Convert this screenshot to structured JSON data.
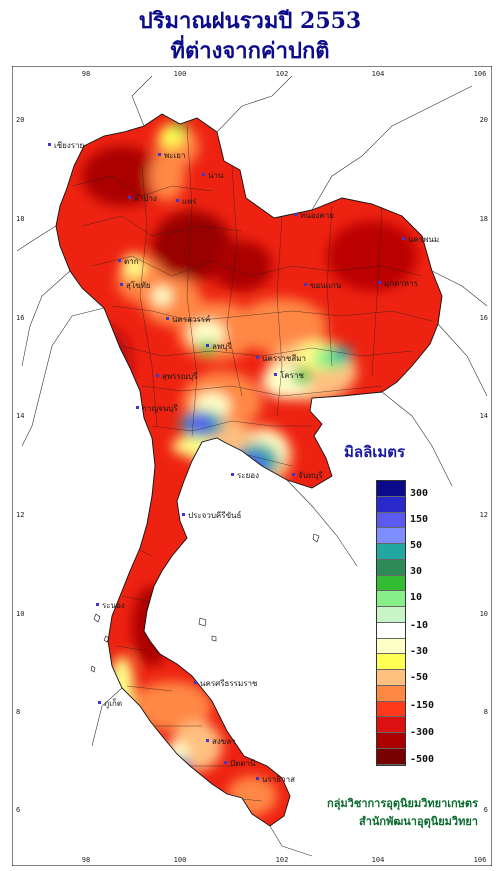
{
  "title": {
    "line1": "ปริมาณฝนรวมปี  2553",
    "line2": "ที่ต่างจากค่าปกติ"
  },
  "map": {
    "x_ticks": [
      "98",
      "100",
      "102",
      "104",
      "106"
    ],
    "y_ticks": [
      "20",
      "18",
      "16",
      "14",
      "12",
      "10",
      "8",
      "6"
    ],
    "places": [
      {
        "name": "เชียงราย"
      },
      {
        "name": "น่าน"
      },
      {
        "name": "พะเยา"
      },
      {
        "name": "ลำปาง"
      },
      {
        "name": "แพร่"
      },
      {
        "name": "ตาก"
      },
      {
        "name": "สุโขทัย"
      },
      {
        "name": "นครสวรรค์"
      },
      {
        "name": "หนองคาย"
      },
      {
        "name": "นครพนม"
      },
      {
        "name": "ขอนแก่น"
      },
      {
        "name": "มุกดาหาร"
      },
      {
        "name": "นครราชสีมา"
      },
      {
        "name": "โคราช"
      },
      {
        "name": "ลพบุรี"
      },
      {
        "name": "สุพรรณบุรี"
      },
      {
        "name": "กาญจนบุรี"
      },
      {
        "name": "ระยอง"
      },
      {
        "name": "จันทบุรี"
      },
      {
        "name": "ประจวบคีรีขันธ์"
      },
      {
        "name": "ระนอง"
      },
      {
        "name": "ภูเก็ต"
      },
      {
        "name": "นครศรีธรรมราช"
      },
      {
        "name": "สงขลา"
      },
      {
        "name": "ปัตตานี"
      },
      {
        "name": "นราธิวาส"
      }
    ]
  },
  "legend": {
    "title": "มิลลิเมตร",
    "colors": [
      "#0a0a8a",
      "#2a2acc",
      "#5a5aee",
      "#7f8fff",
      "#22a8a0",
      "#2e8b57",
      "#33bb33",
      "#88ee88",
      "#c8f5c8",
      "#ffffff",
      "#ffffc8",
      "#ffff55",
      "#ffc080",
      "#ff8844",
      "#ff3a1a",
      "#dd1111",
      "#aa0000",
      "#770000"
    ],
    "labels": [
      "300",
      "150",
      "50",
      "30",
      "10",
      "-10",
      "-30",
      "-50",
      "-150",
      "-300",
      "-500"
    ]
  },
  "credits": {
    "line1": "กลุ่มวิชาการอุตุนิยมวิทยาเกษตร",
    "line2": "สำนักพัฒนาอุตุนิยมวิทยา"
  }
}
